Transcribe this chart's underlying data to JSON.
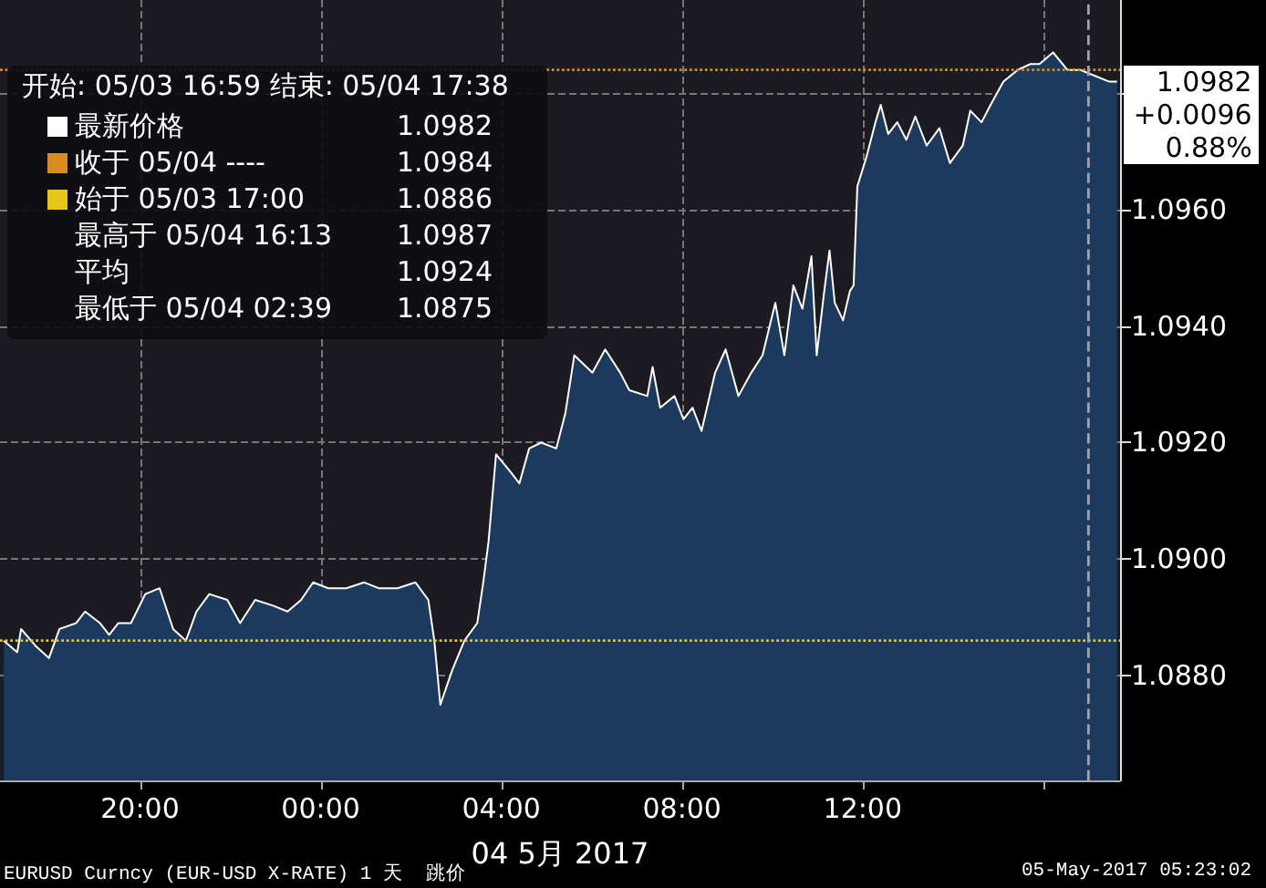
{
  "chart_data": {
    "type": "area",
    "xlabel": "04 5月 2017",
    "series": [
      {
        "color": "#ffffff",
        "x": [
          "2017-05-03T16:59",
          "2017-05-03T17:17",
          "2017-05-03T17:22",
          "2017-05-03T17:42",
          "2017-05-03T17:59",
          "2017-05-03T18:13",
          "2017-05-03T18:35",
          "2017-05-03T18:47",
          "2017-05-03T19:07",
          "2017-05-03T19:19",
          "2017-05-03T19:31",
          "2017-05-03T19:48",
          "2017-05-03T20:07",
          "2017-05-03T20:26",
          "2017-05-03T20:44",
          "2017-05-03T21:01",
          "2017-05-03T21:15",
          "2017-05-03T21:32",
          "2017-05-03T21:56",
          "2017-05-03T22:13",
          "2017-05-03T22:33",
          "2017-05-03T22:57",
          "2017-05-03T23:16",
          "2017-05-03T23:34",
          "2017-05-03T23:50",
          "2017-05-04T00:10",
          "2017-05-04T00:34",
          "2017-05-04T00:58",
          "2017-05-04T01:17",
          "2017-05-04T01:42",
          "2017-05-04T02:06",
          "2017-05-04T02:23",
          "2017-05-04T02:31",
          "2017-05-04T02:39",
          "2017-05-04T02:55",
          "2017-05-04T03:11",
          "2017-05-04T03:28",
          "2017-05-04T03:36",
          "2017-05-04T03:43",
          "2017-05-04T03:53",
          "2017-05-04T04:12",
          "2017-05-04T04:24",
          "2017-05-04T04:37",
          "2017-05-04T04:53",
          "2017-05-04T05:13",
          "2017-05-04T05:25",
          "2017-05-04T05:37",
          "2017-05-04T06:01",
          "2017-05-04T06:18",
          "2017-05-04T06:38",
          "2017-05-04T06:50",
          "2017-05-04T07:14",
          "2017-05-04T07:21",
          "2017-05-04T07:31",
          "2017-05-04T07:50",
          "2017-05-04T08:02",
          "2017-05-04T08:14",
          "2017-05-04T08:26",
          "2017-05-04T08:44",
          "2017-05-04T08:58",
          "2017-05-04T09:15",
          "2017-05-04T09:32",
          "2017-05-04T09:47",
          "2017-05-04T10:04",
          "2017-05-04T10:16",
          "2017-05-04T10:28",
          "2017-05-04T10:40",
          "2017-05-04T10:52",
          "2017-05-04T10:59",
          "2017-05-04T11:09",
          "2017-05-04T11:16",
          "2017-05-04T11:23",
          "2017-05-04T11:34",
          "2017-05-04T11:43",
          "2017-05-04T11:48",
          "2017-05-04T11:53",
          "2017-05-04T12:05",
          "2017-05-04T12:17",
          "2017-05-04T12:24",
          "2017-05-04T12:34",
          "2017-05-04T12:46",
          "2017-05-04T12:58",
          "2017-05-04T13:10",
          "2017-05-04T13:25",
          "2017-05-04T13:42",
          "2017-05-04T13:56",
          "2017-05-04T14:13",
          "2017-05-04T14:23",
          "2017-05-04T14:38",
          "2017-05-04T14:50",
          "2017-05-04T15:07",
          "2017-05-04T15:26",
          "2017-05-04T15:43",
          "2017-05-04T15:55",
          "2017-05-04T16:13",
          "2017-05-04T16:32",
          "2017-05-04T16:49",
          "2017-05-04T17:08",
          "2017-05-04T17:27",
          "2017-05-04T17:38"
        ],
        "values": [
          1.0886,
          1.0884,
          1.0888,
          1.0885,
          1.0883,
          1.0888,
          1.0889,
          1.0891,
          1.0889,
          1.0887,
          1.0889,
          1.0889,
          1.0894,
          1.0895,
          1.0888,
          1.0886,
          1.0891,
          1.0894,
          1.0893,
          1.0889,
          1.0893,
          1.0892,
          1.0891,
          1.0893,
          1.0896,
          1.0895,
          1.0895,
          1.0896,
          1.0895,
          1.0895,
          1.0896,
          1.0893,
          1.0886,
          1.0875,
          1.0881,
          1.0886,
          1.0889,
          1.0896,
          1.0903,
          1.0918,
          1.0915,
          1.0913,
          1.0919,
          1.092,
          1.0919,
          1.0925,
          1.0935,
          1.0932,
          1.0936,
          1.0932,
          1.0929,
          1.0928,
          1.0933,
          1.0926,
          1.0928,
          1.0924,
          1.0926,
          1.0922,
          1.0932,
          1.0936,
          1.0928,
          1.0932,
          1.0935,
          1.0944,
          1.0935,
          1.0947,
          1.0943,
          1.0952,
          1.0935,
          1.0946,
          1.0953,
          1.0944,
          1.0941,
          1.0946,
          1.0947,
          1.0964,
          1.0969,
          1.0975,
          1.0978,
          1.0973,
          1.0975,
          1.0972,
          1.0976,
          1.0971,
          1.0974,
          1.0968,
          1.0971,
          1.0977,
          1.0975,
          1.0978,
          1.0982,
          1.0984,
          1.0985,
          1.0985,
          1.0987,
          1.0984,
          1.0984,
          1.0983,
          1.0982,
          1.0982
        ]
      }
    ],
    "xlim": [
      "2017-05-03T16:54",
      "2017-05-04T17:42"
    ],
    "xticks": [
      {
        "value": "2017-05-03T20:00",
        "label": "20:00"
      },
      {
        "value": "2017-05-04T00:00",
        "label": "00:00"
      },
      {
        "value": "2017-05-04T04:00",
        "label": "04:00"
      },
      {
        "value": "2017-05-04T08:00",
        "label": "08:00"
      },
      {
        "value": "2017-05-04T12:00",
        "label": "12:00"
      },
      {
        "value": "2017-05-04T16:00",
        "label": null
      }
    ],
    "ylim": [
      1.0862,
      1.0996
    ],
    "yticks": [
      {
        "value": 1.088,
        "label": "1.0880"
      },
      {
        "value": 1.09,
        "label": "1.0900"
      },
      {
        "value": 1.092,
        "label": "1.0920"
      },
      {
        "value": 1.094,
        "label": "1.0940"
      },
      {
        "value": 1.096,
        "label": "1.0960"
      },
      {
        "value": 1.098,
        "label": null
      }
    ],
    "grid": true,
    "ref_lines": [
      {
        "axis": "y",
        "value": 1.0886,
        "color": "#e6c619",
        "line_style": "dotted"
      },
      {
        "axis": "y",
        "value": 1.0984,
        "color": "#d98c1e",
        "line_style": "dotted"
      },
      {
        "axis": "x",
        "value": "2017-05-04T17:00",
        "color": "#a0a4ad",
        "line_style": "dashed"
      }
    ],
    "annotations": [
      "开始: 05/03 16:59 结束: 05/04 17:38",
      "最新价格",
      "1.0982",
      "收于 05/04 ----",
      "1.0984",
      "始于 05/03 17:00",
      "1.0886",
      "最高于 05/04 16:13",
      "1.0987",
      "平均",
      "1.0924",
      "最低于 05/04 02:39",
      "1.0875",
      {
        "text": "1.0982",
        "x": "2017-05-04T17:38",
        "y": 1.0982
      },
      "+0.0096",
      "0.88%",
      "EURUSD Curncy (EUR-USD X-RATE) 1 天  跳价",
      "05-May-2017 05:23:02"
    ]
  }
}
